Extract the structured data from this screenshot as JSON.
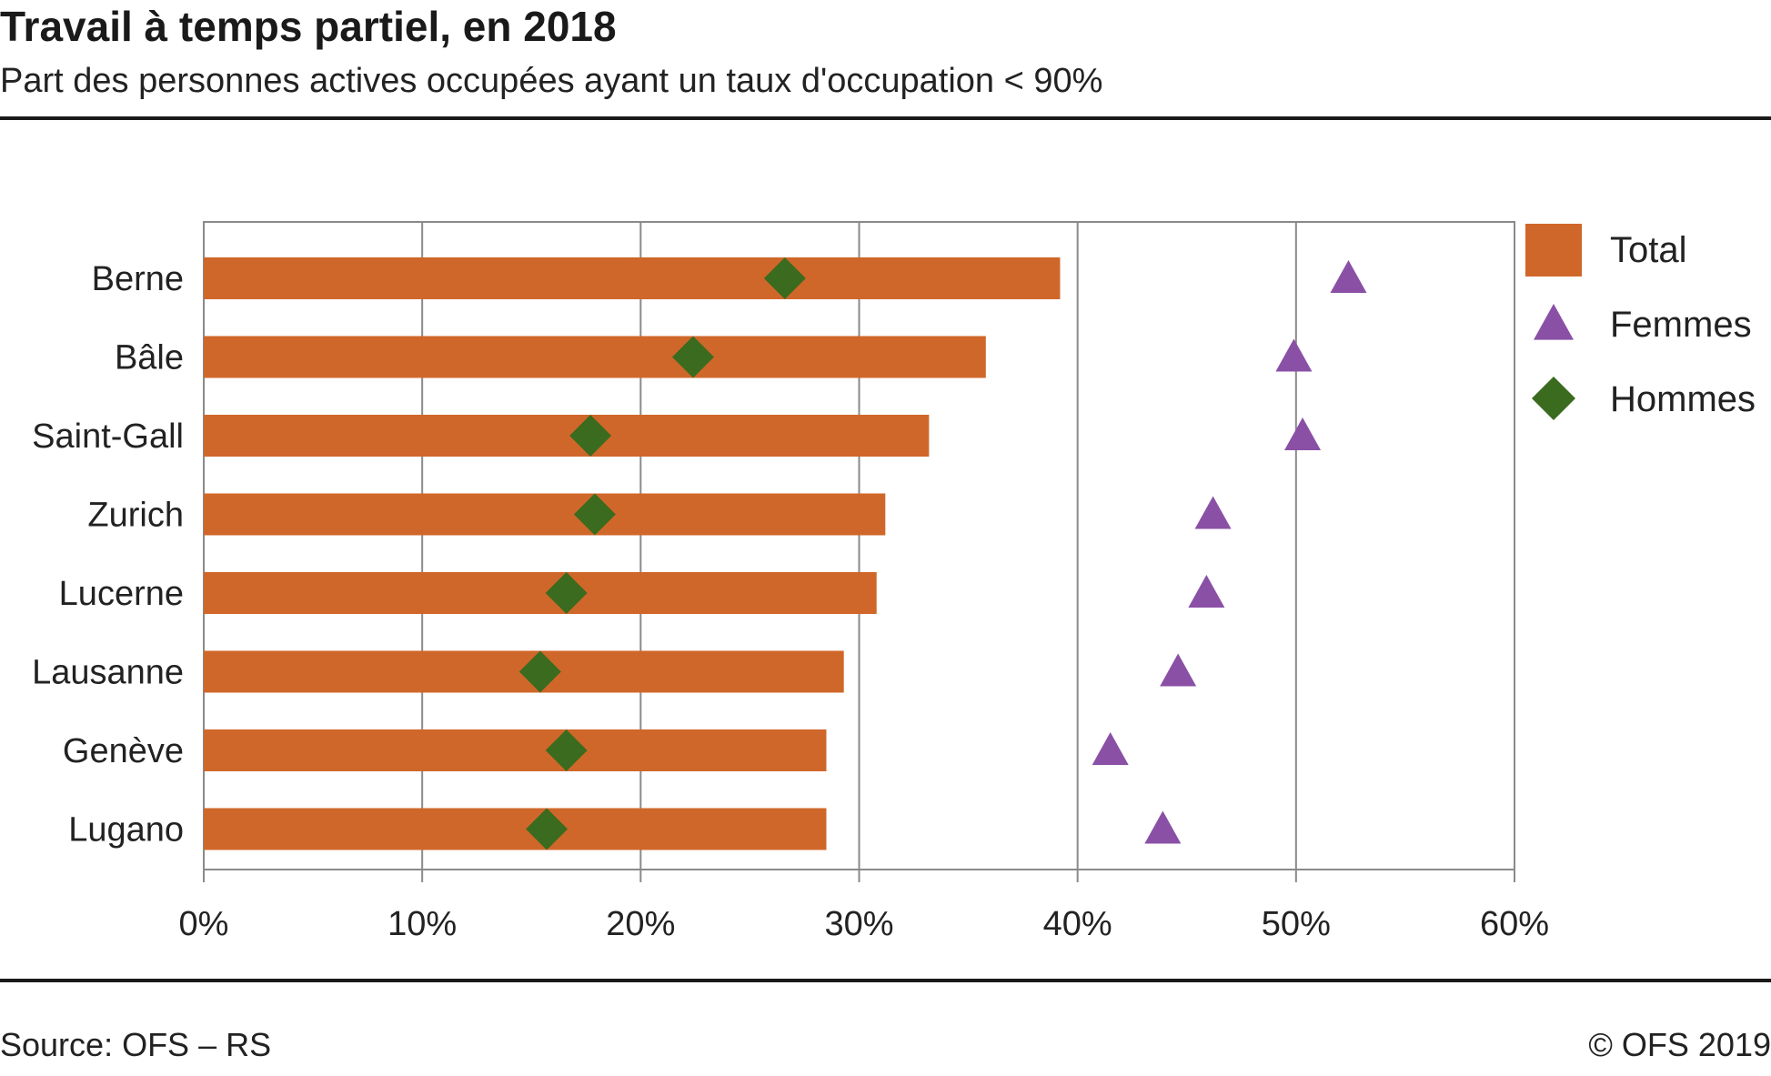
{
  "header": {
    "title": "Travail à temps partiel, en 2018",
    "subtitle": "Part des personnes actives occupées ayant un taux d'occupation < 90%"
  },
  "footer": {
    "source": "Source: OFS – RS",
    "copyright": "© OFS 2019"
  },
  "colors": {
    "total": "#d0672a",
    "femmes": "#8a50a6",
    "hommes": "#3b6b1e",
    "grid": "#8a8a8a"
  },
  "chart_data": {
    "type": "bar",
    "orientation": "horizontal",
    "categories": [
      "Berne",
      "Bâle",
      "Saint-Gall",
      "Zurich",
      "Lucerne",
      "Lausanne",
      "Genève",
      "Lugano"
    ],
    "series": [
      {
        "name": "Total",
        "marker": "bar",
        "values": [
          39.2,
          35.8,
          33.2,
          31.2,
          30.8,
          29.3,
          28.5,
          28.5
        ]
      },
      {
        "name": "Femmes",
        "marker": "triangle",
        "values": [
          52.4,
          49.9,
          50.3,
          46.2,
          45.9,
          44.6,
          41.5,
          43.9
        ]
      },
      {
        "name": "Hommes",
        "marker": "diamond",
        "values": [
          26.6,
          22.4,
          17.7,
          17.9,
          16.6,
          15.4,
          16.6,
          15.7
        ]
      }
    ],
    "xlim": [
      0,
      60
    ],
    "xticks": [
      0,
      10,
      20,
      30,
      40,
      50,
      60
    ],
    "tick_labels": [
      "0%",
      "10%",
      "20%",
      "30%",
      "40%",
      "50%",
      "60%"
    ],
    "grid": true,
    "legend_position": "right"
  }
}
